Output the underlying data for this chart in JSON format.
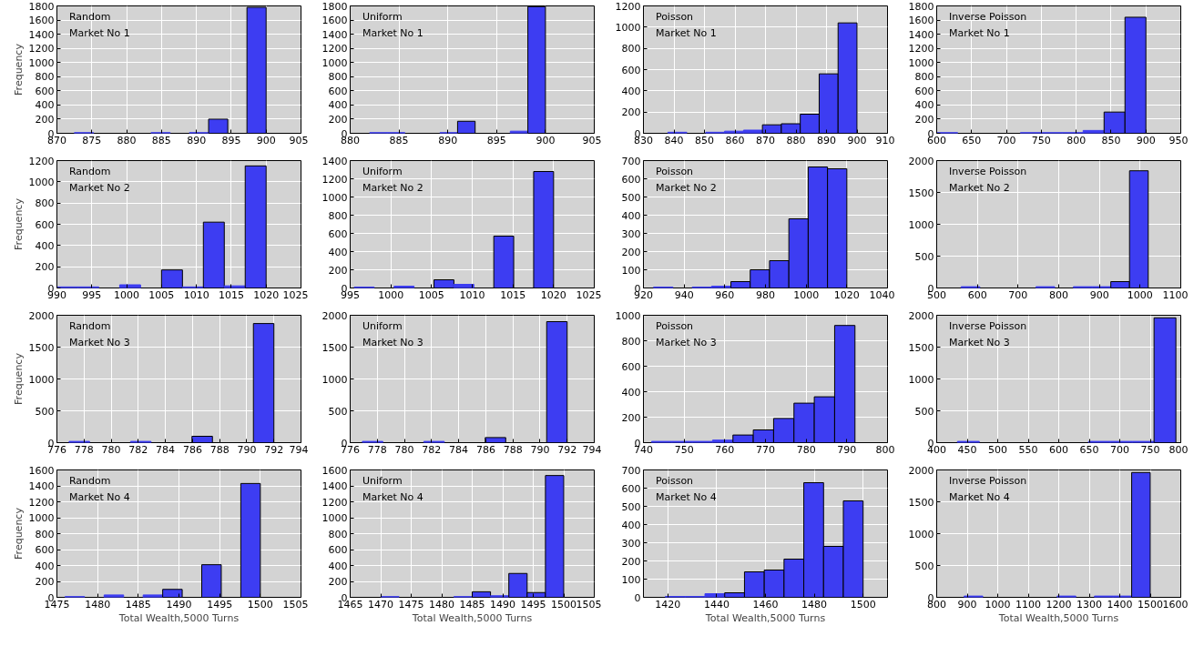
{
  "chart_data": [
    {
      "type": "histogram",
      "annotations": [
        "Random",
        "Market No 1"
      ],
      "ylabel": "Frequency",
      "bins": [
        872.5,
        875.25,
        878,
        880.75,
        883.5,
        886.25,
        889,
        891.75,
        894.5,
        897.25,
        900
      ],
      "values": [
        10,
        0,
        0,
        0,
        10,
        0,
        10,
        200,
        0,
        1780
      ],
      "color": "#3d3df2",
      "xlim": [
        870,
        905
      ],
      "xticks": [
        870,
        875,
        880,
        885,
        890,
        895,
        900,
        905
      ],
      "ylim": [
        0,
        1800
      ],
      "yticks": [
        0,
        200,
        400,
        600,
        800,
        1000,
        1200,
        1400,
        1600,
        1800
      ],
      "grid": true
    },
    {
      "type": "histogram",
      "annotations": [
        "Uniform",
        "Market No 1"
      ],
      "bins": [
        882,
        883.8,
        885.6,
        887.4,
        889.2,
        891,
        892.8,
        894.6,
        896.4,
        898.2,
        900
      ],
      "values": [
        10,
        10,
        0,
        0,
        10,
        170,
        0,
        0,
        30,
        1790
      ],
      "color": "#3d3df2",
      "xlim": [
        880,
        905
      ],
      "xticks": [
        880,
        885,
        890,
        895,
        900,
        905
      ],
      "ylim": [
        0,
        1800
      ],
      "yticks": [
        0,
        200,
        400,
        600,
        800,
        1000,
        1200,
        1400,
        1600,
        1800
      ],
      "grid": true
    },
    {
      "type": "histogram",
      "annotations": [
        "Poisson",
        "Market No 1"
      ],
      "bins": [
        838,
        844.2,
        850.4,
        856.6,
        862.8,
        869,
        875.2,
        881.4,
        887.6,
        893.8,
        900
      ],
      "values": [
        10,
        0,
        10,
        20,
        30,
        80,
        90,
        180,
        560,
        1040
      ],
      "color": "#3d3df2",
      "xlim": [
        830,
        910
      ],
      "xticks": [
        830,
        840,
        850,
        860,
        870,
        880,
        890,
        900,
        910
      ],
      "ylim": [
        0,
        1200
      ],
      "yticks": [
        0,
        200,
        400,
        600,
        800,
        1000,
        1200
      ],
      "grid": true
    },
    {
      "type": "histogram",
      "annotations": [
        "Inverse Poisson",
        "Market No 1"
      ],
      "bins": [
        600,
        630,
        660,
        690,
        720,
        750,
        780,
        810,
        840,
        870,
        900
      ],
      "values": [
        10,
        0,
        0,
        0,
        10,
        10,
        10,
        40,
        300,
        1640
      ],
      "color": "#3d3df2",
      "xlim": [
        600,
        950
      ],
      "xticks": [
        600,
        650,
        700,
        750,
        800,
        850,
        900,
        950
      ],
      "ylim": [
        0,
        1800
      ],
      "yticks": [
        0,
        200,
        400,
        600,
        800,
        1000,
        1200,
        1400,
        1600,
        1800
      ],
      "grid": true
    },
    {
      "type": "histogram",
      "annotations": [
        "Random",
        "Market No 2"
      ],
      "ylabel": "Frequency",
      "bins": [
        990,
        993,
        996,
        999,
        1002,
        1005,
        1008,
        1011,
        1014,
        1017,
        1020
      ],
      "values": [
        10,
        10,
        0,
        30,
        0,
        170,
        10,
        620,
        20,
        1150
      ],
      "color": "#3d3df2",
      "xlim": [
        990,
        1025
      ],
      "xticks": [
        990,
        995,
        1000,
        1005,
        1010,
        1015,
        1020,
        1025
      ],
      "ylim": [
        0,
        1200
      ],
      "yticks": [
        0,
        200,
        400,
        600,
        800,
        1000,
        1200
      ],
      "grid": true
    },
    {
      "type": "histogram",
      "annotations": [
        "Uniform",
        "Market No 2"
      ],
      "bins": [
        995.5,
        997.95,
        1000.4,
        1002.85,
        1005.3,
        1007.75,
        1010.2,
        1012.65,
        1015.1,
        1017.55,
        1020
      ],
      "values": [
        10,
        0,
        20,
        0,
        90,
        40,
        0,
        570,
        0,
        1280
      ],
      "color": "#3d3df2",
      "xlim": [
        995,
        1025
      ],
      "xticks": [
        995,
        1000,
        1005,
        1010,
        1015,
        1020,
        1025
      ],
      "ylim": [
        0,
        1400
      ],
      "yticks": [
        0,
        200,
        400,
        600,
        800,
        1000,
        1200,
        1400
      ],
      "grid": true
    },
    {
      "type": "histogram",
      "annotations": [
        "Poisson",
        "Market No 2"
      ],
      "bins": [
        925,
        934.5,
        944,
        953.5,
        963,
        972.5,
        982,
        991.5,
        1001,
        1010.5,
        1020
      ],
      "values": [
        5,
        0,
        5,
        10,
        35,
        100,
        150,
        380,
        665,
        655
      ],
      "color": "#3d3df2",
      "xlim": [
        920,
        1040
      ],
      "xticks": [
        920,
        940,
        960,
        980,
        1000,
        1020,
        1040
      ],
      "ylim": [
        0,
        700
      ],
      "yticks": [
        0,
        100,
        200,
        300,
        400,
        500,
        600,
        700
      ],
      "grid": true
    },
    {
      "type": "histogram",
      "annotations": [
        "Inverse Poisson",
        "Market No 2"
      ],
      "bins": [
        560,
        606,
        652,
        698,
        744,
        790,
        836,
        882,
        928,
        974,
        1020
      ],
      "values": [
        20,
        0,
        0,
        0,
        20,
        0,
        20,
        20,
        100,
        1840
      ],
      "color": "#3d3df2",
      "xlim": [
        500,
        1100
      ],
      "xticks": [
        500,
        600,
        700,
        800,
        900,
        1000,
        1100
      ],
      "ylim": [
        0,
        2000
      ],
      "yticks": [
        0,
        500,
        1000,
        1500,
        2000
      ],
      "grid": true
    },
    {
      "type": "histogram",
      "annotations": [
        "Random",
        "Market No 3"
      ],
      "ylabel": "Frequency",
      "bins": [
        776.9,
        778.41,
        779.92,
        781.43,
        782.94,
        784.45,
        785.96,
        787.47,
        788.98,
        790.49,
        792.0
      ],
      "values": [
        20,
        0,
        0,
        20,
        0,
        0,
        100,
        0,
        0,
        1870
      ],
      "color": "#3d3df2",
      "xlim": [
        776,
        794
      ],
      "xticks": [
        776,
        778,
        780,
        782,
        784,
        786,
        788,
        790,
        792,
        794
      ],
      "ylim": [
        0,
        2000
      ],
      "yticks": [
        0,
        500,
        1000,
        1500,
        2000
      ],
      "grid": true
    },
    {
      "type": "histogram",
      "annotations": [
        "Uniform",
        "Market No 3"
      ],
      "bins": [
        776.9,
        778.41,
        779.92,
        781.43,
        782.94,
        784.45,
        785.96,
        787.47,
        788.98,
        790.49,
        792.0
      ],
      "values": [
        20,
        0,
        0,
        20,
        0,
        0,
        80,
        0,
        0,
        1900
      ],
      "color": "#3d3df2",
      "xlim": [
        776,
        794
      ],
      "xticks": [
        776,
        778,
        780,
        782,
        784,
        786,
        788,
        790,
        792,
        794
      ],
      "ylim": [
        0,
        2000
      ],
      "yticks": [
        0,
        500,
        1000,
        1500,
        2000
      ],
      "grid": true
    },
    {
      "type": "histogram",
      "annotations": [
        "Poisson",
        "Market No 3"
      ],
      "bins": [
        742,
        747,
        752,
        757,
        762,
        767,
        772,
        777,
        782,
        787,
        792
      ],
      "values": [
        10,
        10,
        10,
        20,
        60,
        100,
        190,
        310,
        360,
        920
      ],
      "color": "#3d3df2",
      "xlim": [
        740,
        800
      ],
      "xticks": [
        740,
        750,
        760,
        770,
        780,
        790,
        800
      ],
      "ylim": [
        0,
        1000
      ],
      "yticks": [
        0,
        200,
        400,
        600,
        800,
        1000
      ],
      "grid": true
    },
    {
      "type": "histogram",
      "annotations": [
        "Inverse Poisson",
        "Market No 3"
      ],
      "bins": [
        434,
        469.8,
        505.6,
        541.4,
        577.2,
        613,
        648.8,
        684.6,
        720.4,
        756.2,
        792
      ],
      "values": [
        20,
        0,
        0,
        0,
        0,
        0,
        20,
        20,
        20,
        1960
      ],
      "color": "#3d3df2",
      "xlim": [
        400,
        800
      ],
      "xticks": [
        400,
        450,
        500,
        550,
        600,
        650,
        700,
        750,
        800
      ],
      "ylim": [
        0,
        2000
      ],
      "yticks": [
        0,
        500,
        1000,
        1500,
        2000
      ],
      "grid": true
    },
    {
      "type": "histogram",
      "annotations": [
        "Random",
        "Market No 4"
      ],
      "ylabel": "Frequency",
      "xlabel": "Total Wealth,5000 Turns",
      "bins": [
        1476,
        1478.4,
        1480.8,
        1483.2,
        1485.6,
        1488,
        1490.4,
        1492.8,
        1495.2,
        1497.6,
        1500
      ],
      "values": [
        10,
        0,
        30,
        0,
        30,
        100,
        0,
        410,
        0,
        1430
      ],
      "color": "#3d3df2",
      "xlim": [
        1475,
        1505
      ],
      "xticks": [
        1475,
        1480,
        1485,
        1490,
        1495,
        1500,
        1505
      ],
      "ylim": [
        0,
        1600
      ],
      "yticks": [
        0,
        200,
        400,
        600,
        800,
        1000,
        1200,
        1400,
        1600
      ],
      "grid": true
    },
    {
      "type": "histogram",
      "annotations": [
        "Uniform",
        "Market No 4"
      ],
      "xlabel": "Total Wealth,5000 Turns",
      "bins": [
        1470,
        1473,
        1476,
        1479,
        1482,
        1485,
        1488,
        1491,
        1494,
        1497,
        1500
      ],
      "values": [
        10,
        0,
        0,
        0,
        10,
        70,
        20,
        300,
        60,
        1530
      ],
      "color": "#3d3df2",
      "xlim": [
        1465,
        1505
      ],
      "xticks": [
        1465,
        1470,
        1475,
        1480,
        1485,
        1490,
        1495,
        1500,
        1505
      ],
      "ylim": [
        0,
        1600
      ],
      "yticks": [
        0,
        200,
        400,
        600,
        800,
        1000,
        1200,
        1400,
        1600
      ],
      "grid": true
    },
    {
      "type": "histogram",
      "annotations": [
        "Poisson",
        "Market No 4"
      ],
      "xlabel": "Total Wealth,5000 Turns",
      "bins": [
        1419,
        1427.1,
        1435.2,
        1443.3,
        1451.4,
        1459.5,
        1467.6,
        1475.7,
        1483.8,
        1491.9,
        1500
      ],
      "values": [
        5,
        5,
        20,
        25,
        140,
        150,
        210,
        630,
        280,
        530
      ],
      "color": "#3d3df2",
      "xlim": [
        1410,
        1510
      ],
      "xticks": [
        1420,
        1440,
        1460,
        1480,
        1500
      ],
      "ylim": [
        0,
        700
      ],
      "yticks": [
        0,
        100,
        200,
        300,
        400,
        500,
        600,
        700
      ],
      "grid": true
    },
    {
      "type": "histogram",
      "annotations": [
        "Inverse Poisson",
        "Market No 4"
      ],
      "xlabel": "Total Wealth,5000 Turns",
      "bins": [
        890,
        951,
        1012,
        1073,
        1134,
        1195,
        1256,
        1317,
        1378,
        1439,
        1500
      ],
      "values": [
        20,
        0,
        0,
        0,
        0,
        20,
        0,
        20,
        20,
        1960
      ],
      "color": "#3d3df2",
      "xlim": [
        800,
        1600
      ],
      "xticks": [
        800,
        900,
        1000,
        1100,
        1200,
        1300,
        1400,
        1500,
        1600
      ],
      "ylim": [
        0,
        2000
      ],
      "yticks": [
        0,
        500,
        1000,
        1500,
        2000
      ],
      "grid": true
    }
  ]
}
